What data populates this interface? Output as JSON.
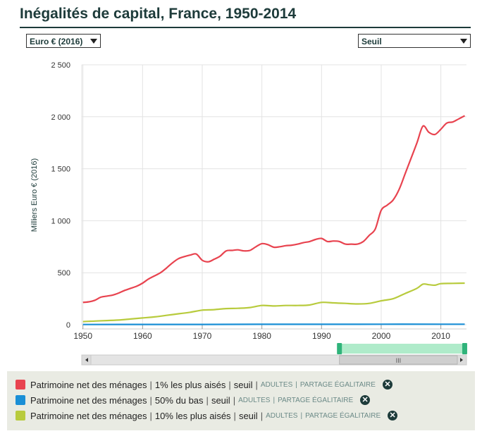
{
  "title": "Inégalités de capital, France, 1950-2014",
  "controls": {
    "currency": "Euro € (2016)",
    "measure": "Seuil"
  },
  "colors": {
    "title": "#1d3b3a",
    "red": "#e8434f",
    "blue": "#1a8fd6",
    "green": "#b8cb3d",
    "navigator": "#a6e9c4",
    "navigator_handle": "#2fb37a"
  },
  "chart_data": {
    "type": "line",
    "title": "Inégalités de capital, France, 1950-2014",
    "ylabel": "Milliers Euro € (2016)",
    "xlabel": "",
    "xlim": [
      1949.8,
      2014.3
    ],
    "ylim": [
      0,
      2500
    ],
    "yticks": [
      0,
      500,
      1000,
      1500,
      2000,
      2500
    ],
    "ytick_labels": [
      "0",
      "500",
      "1 000",
      "1 500",
      "2 000",
      "2 500"
    ],
    "xticks": [
      1950,
      1960,
      1970,
      1980,
      1990,
      2000,
      2010
    ],
    "xtick_labels": [
      "1950",
      "1960",
      "1970",
      "1980",
      "1990",
      "2000",
      "2010"
    ],
    "grid": true,
    "navigator_range": [
      1993,
      2014
    ],
    "series": [
      {
        "name": "Patrimoine net des ménages | 1% les plus aisés | seuil",
        "color_key": "red",
        "points": [
          [
            1950,
            215
          ],
          [
            1951,
            220
          ],
          [
            1952,
            235
          ],
          [
            1953,
            265
          ],
          [
            1954,
            275
          ],
          [
            1955,
            285
          ],
          [
            1956,
            305
          ],
          [
            1957,
            330
          ],
          [
            1958,
            350
          ],
          [
            1959,
            370
          ],
          [
            1960,
            400
          ],
          [
            1961,
            440
          ],
          [
            1962,
            470
          ],
          [
            1963,
            500
          ],
          [
            1964,
            545
          ],
          [
            1965,
            595
          ],
          [
            1966,
            635
          ],
          [
            1967,
            655
          ],
          [
            1968,
            670
          ],
          [
            1969,
            680
          ],
          [
            1970,
            620
          ],
          [
            1971,
            605
          ],
          [
            1972,
            630
          ],
          [
            1973,
            660
          ],
          [
            1974,
            710
          ],
          [
            1975,
            715
          ],
          [
            1976,
            720
          ],
          [
            1977,
            710
          ],
          [
            1978,
            715
          ],
          [
            1979,
            750
          ],
          [
            1980,
            780
          ],
          [
            1981,
            770
          ],
          [
            1982,
            745
          ],
          [
            1983,
            750
          ],
          [
            1984,
            760
          ],
          [
            1985,
            765
          ],
          [
            1986,
            775
          ],
          [
            1987,
            790
          ],
          [
            1988,
            800
          ],
          [
            1989,
            820
          ],
          [
            1990,
            830
          ],
          [
            1991,
            800
          ],
          [
            1992,
            805
          ],
          [
            1993,
            800
          ],
          [
            1994,
            775
          ],
          [
            1995,
            775
          ],
          [
            1996,
            775
          ],
          [
            1997,
            800
          ],
          [
            1998,
            860
          ],
          [
            1999,
            920
          ],
          [
            2000,
            1100
          ],
          [
            2001,
            1150
          ],
          [
            2002,
            1200
          ],
          [
            2003,
            1300
          ],
          [
            2004,
            1450
          ],
          [
            2005,
            1600
          ],
          [
            2006,
            1750
          ],
          [
            2007,
            1910
          ],
          [
            2008,
            1850
          ],
          [
            2009,
            1830
          ],
          [
            2010,
            1880
          ],
          [
            2011,
            1940
          ],
          [
            2012,
            1950
          ],
          [
            2013,
            1980
          ],
          [
            2014,
            2010
          ]
        ]
      },
      {
        "name": "Patrimoine net des ménages | 50% du bas | seuil",
        "color_key": "blue",
        "points": [
          [
            1950,
            2
          ],
          [
            1960,
            3
          ],
          [
            1970,
            3
          ],
          [
            1980,
            4
          ],
          [
            1990,
            4
          ],
          [
            2000,
            5
          ],
          [
            2010,
            5
          ],
          [
            2014,
            5
          ]
        ]
      },
      {
        "name": "Patrimoine net des ménages | 10% les plus aisés | seuil",
        "color_key": "green",
        "points": [
          [
            1950,
            30
          ],
          [
            1952,
            35
          ],
          [
            1954,
            40
          ],
          [
            1956,
            45
          ],
          [
            1958,
            55
          ],
          [
            1960,
            65
          ],
          [
            1962,
            75
          ],
          [
            1964,
            90
          ],
          [
            1966,
            105
          ],
          [
            1968,
            120
          ],
          [
            1970,
            140
          ],
          [
            1972,
            145
          ],
          [
            1974,
            155
          ],
          [
            1976,
            158
          ],
          [
            1978,
            165
          ],
          [
            1980,
            185
          ],
          [
            1982,
            180
          ],
          [
            1984,
            185
          ],
          [
            1986,
            185
          ],
          [
            1988,
            190
          ],
          [
            1990,
            215
          ],
          [
            1992,
            210
          ],
          [
            1994,
            205
          ],
          [
            1996,
            200
          ],
          [
            1998,
            205
          ],
          [
            2000,
            230
          ],
          [
            2002,
            250
          ],
          [
            2004,
            300
          ],
          [
            2006,
            350
          ],
          [
            2007,
            390
          ],
          [
            2008,
            385
          ],
          [
            2009,
            380
          ],
          [
            2010,
            395
          ],
          [
            2012,
            398
          ],
          [
            2014,
            400
          ]
        ]
      }
    ]
  },
  "legend": [
    {
      "indicator": "Patrimoine net des ménages",
      "group": "1% les plus aisés",
      "measure": "seuil",
      "unit": "ADULTES",
      "method": "PARTAGE ÉGALITAIRE",
      "color_key": "red"
    },
    {
      "indicator": "Patrimoine net des ménages",
      "group": "50% du bas",
      "measure": "seuil",
      "unit": "ADULTES",
      "method": "PARTAGE ÉGALITAIRE",
      "color_key": "blue"
    },
    {
      "indicator": "Patrimoine net des ménages",
      "group": "10% les plus aisés",
      "measure": "seuil",
      "unit": "ADULTES",
      "method": "PARTAGE ÉGALITAIRE",
      "color_key": "green"
    }
  ]
}
